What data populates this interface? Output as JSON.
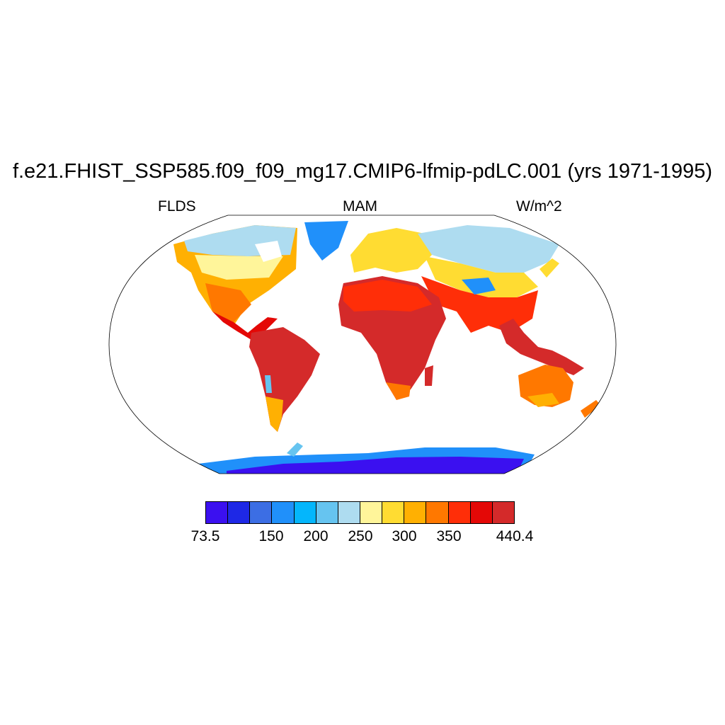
{
  "title": "f.e21.FHIST_SSP585.f09_f09_mg17.CMIP6-lfmip-pdLC.001 (yrs 1971-1995)",
  "left_label": "FLDS",
  "center_label": "MAM",
  "right_label": "W/m^2",
  "colorbar": {
    "colors": [
      "#3b10f0",
      "#1e28e6",
      "#3c6ee4",
      "#2090fa",
      "#04b6fc",
      "#66c4f0",
      "#aedcf0",
      "#fff59a",
      "#ffdc32",
      "#ffb002",
      "#ff7800",
      "#ff2e08",
      "#e40806",
      "#d42a2a"
    ],
    "labels": [
      {
        "text": "73.5",
        "index": 0
      },
      {
        "text": "150",
        "index": 2
      },
      {
        "text": "200",
        "index": 3
      },
      {
        "text": "250",
        "index": 4
      },
      {
        "text": "300",
        "index": 5
      },
      {
        "text": "350",
        "index": 6
      },
      {
        "text": "440.4",
        "index": 7
      }
    ]
  }
}
